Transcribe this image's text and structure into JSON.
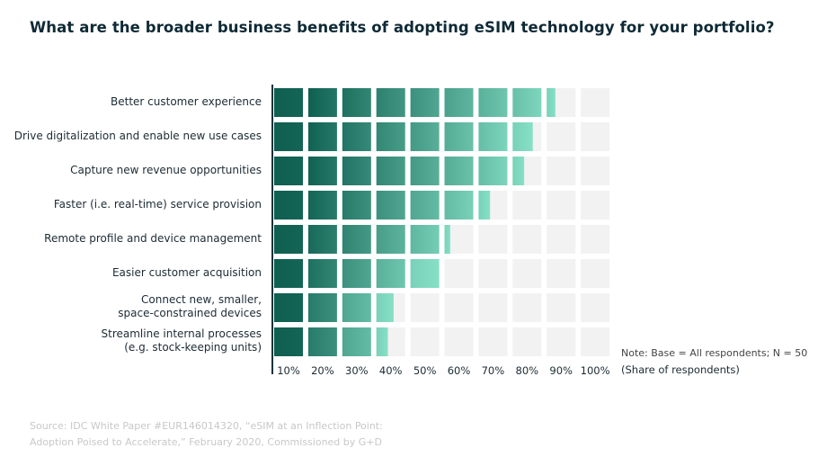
{
  "chart_data": {
    "type": "bar",
    "orientation": "horizontal",
    "style": "segmented (10% cells)",
    "title": "What are the broader business benefits of adopting eSIM technology for your portfolio?",
    "categories": [
      "Better customer experience",
      "Drive digitalization and enable new use cases",
      "Capture new revenue opportunities",
      "Faster (i.e. real-time) service provision",
      "Remote profile and device management",
      "Easier customer acquisition",
      "Connect new, smaller,\nspace-constrained devices",
      "Streamline internal processes\n(e.g. stock-keeping units)"
    ],
    "values": [
      83,
      77,
      74,
      64,
      52,
      50,
      36,
      34
    ],
    "xlim": [
      0,
      100
    ],
    "tick_labels": [
      "10%",
      "20%",
      "30%",
      "40%",
      "50%",
      "60%",
      "70%",
      "80%",
      "90%",
      "100%"
    ],
    "xlabel": "(Share of respondents)",
    "note": "Note: Base = All respondents; N = 50",
    "colors": {
      "dark": "#0e5f50",
      "light": "#86e0c6",
      "empty": "#f2f2f2",
      "axis": "#17333a"
    }
  },
  "source": [
    "Source: IDC White Paper #EUR146014320, “eSIM at an Inflection Point:",
    "Adoption Poised to Accelerate,” February 2020, Commissioned by G+D"
  ]
}
